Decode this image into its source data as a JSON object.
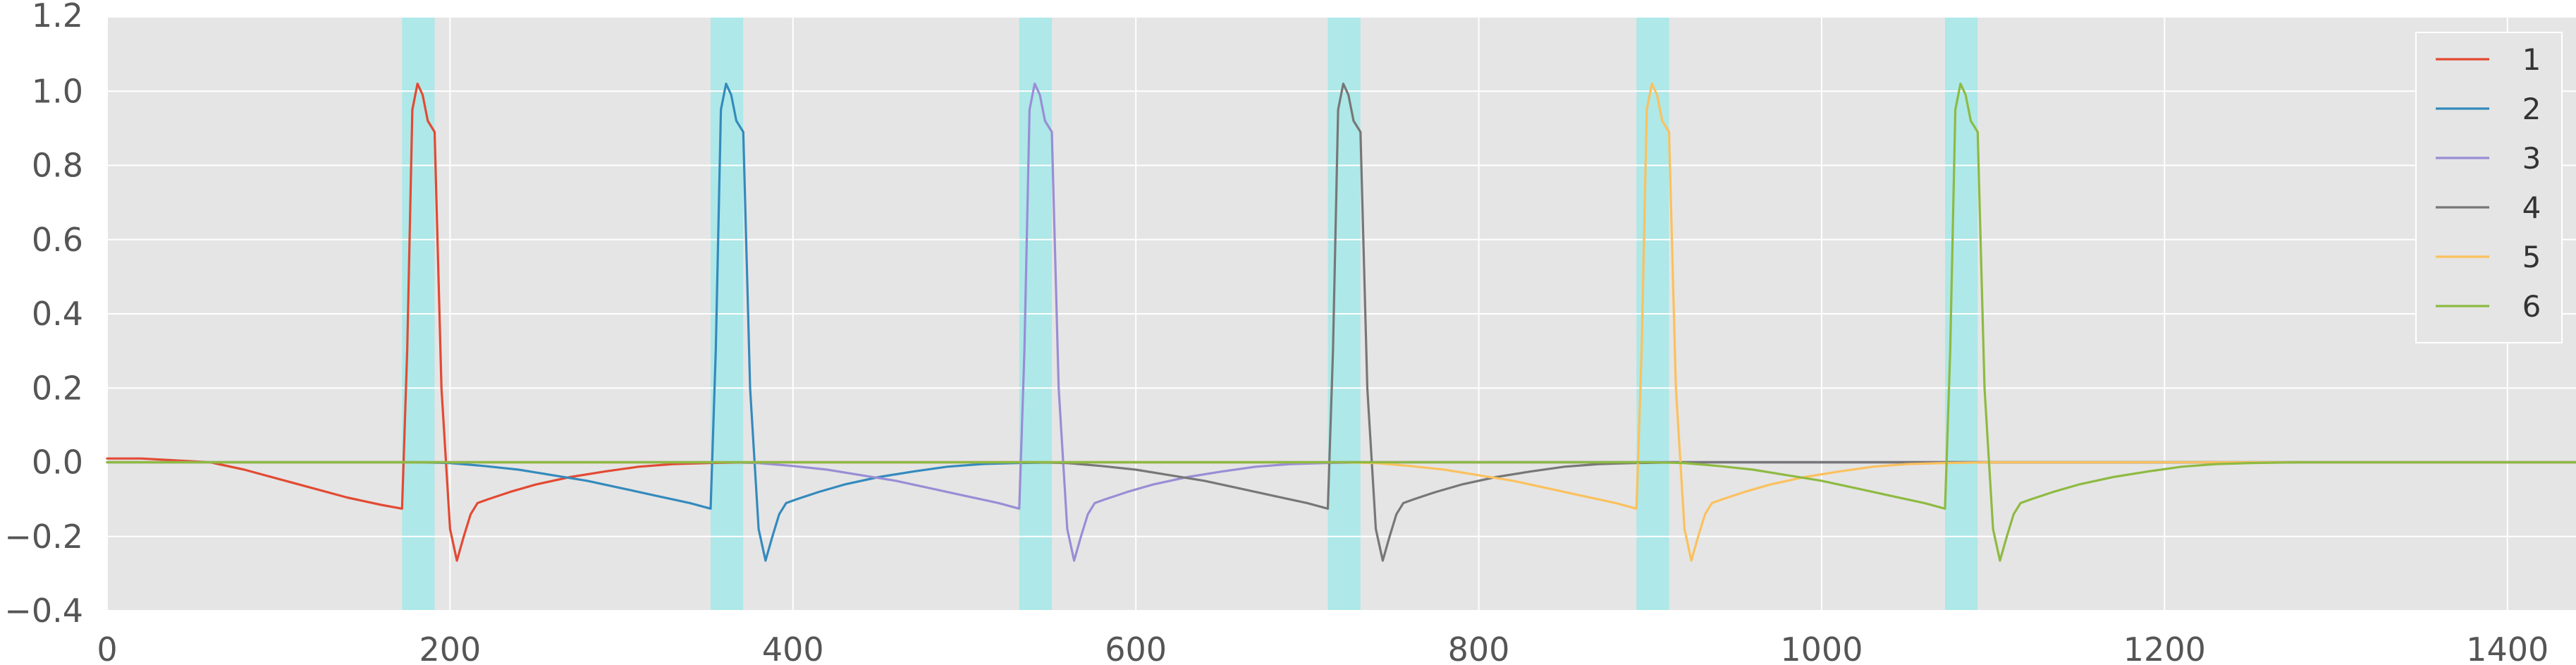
{
  "chart_data": {
    "type": "line",
    "title": "",
    "xlabel": "",
    "ylabel": "",
    "xlim": [
      0,
      1440
    ],
    "ylim": [
      -0.4,
      1.2
    ],
    "x_ticks": [
      0,
      200,
      400,
      600,
      800,
      1000,
      1200,
      1400
    ],
    "y_ticks": [
      -0.4,
      -0.2,
      0.0,
      0.2,
      0.4,
      0.6,
      0.8,
      1.0,
      1.2
    ],
    "x_tick_labels": [
      "0",
      "200",
      "400",
      "600",
      "800",
      "1000",
      "1200",
      "1400"
    ],
    "y_tick_labels": [
      "−0.4",
      "−0.2",
      "0.0",
      "0.2",
      "0.4",
      "0.6",
      "0.8",
      "1.0",
      "1.2"
    ],
    "grid": true,
    "background_color": "#e5e5e5",
    "legend_position": "top-right",
    "highlight_color": "#aee8e8",
    "highlight_spans": [
      [
        172,
        191
      ],
      [
        352,
        371
      ],
      [
        532,
        551
      ],
      [
        712,
        731
      ],
      [
        892,
        911
      ],
      [
        1072,
        1091
      ]
    ],
    "series": [
      {
        "name": "1",
        "color": "#e24a33",
        "x": [
          0,
          20,
          40,
          60,
          80,
          100,
          120,
          140,
          160,
          172,
          175,
          178,
          181,
          184,
          187,
          191,
          195,
          200,
          204,
          208,
          212,
          216,
          222,
          235,
          250,
          270,
          290,
          310,
          330,
          350,
          380,
          1440
        ],
        "y": [
          0.01,
          0.01,
          0.005,
          0.0,
          -0.02,
          -0.045,
          -0.07,
          -0.095,
          -0.115,
          -0.125,
          0.3,
          0.95,
          1.02,
          0.99,
          0.92,
          0.89,
          0.2,
          -0.18,
          -0.265,
          -0.2,
          -0.14,
          -0.11,
          -0.1,
          -0.08,
          -0.06,
          -0.04,
          -0.025,
          -0.012,
          -0.005,
          -0.002,
          0.0,
          0.0
        ]
      },
      {
        "name": "2",
        "color": "#348abd",
        "x": [
          0,
          180,
          200,
          220,
          240,
          260,
          280,
          300,
          320,
          340,
          352,
          355,
          358,
          361,
          364,
          367,
          371,
          375,
          380,
          384,
          388,
          392,
          396,
          402,
          415,
          430,
          450,
          470,
          490,
          510,
          530,
          560,
          1440
        ],
        "y": [
          0.0,
          0.0,
          -0.002,
          -0.01,
          -0.02,
          -0.035,
          -0.05,
          -0.07,
          -0.09,
          -0.11,
          -0.125,
          0.3,
          0.95,
          1.02,
          0.99,
          0.92,
          0.89,
          0.2,
          -0.18,
          -0.265,
          -0.2,
          -0.14,
          -0.11,
          -0.1,
          -0.08,
          -0.06,
          -0.04,
          -0.025,
          -0.012,
          -0.005,
          -0.002,
          0.0,
          0.0
        ]
      },
      {
        "name": "3",
        "color": "#988ed5",
        "x": [
          0,
          360,
          380,
          400,
          420,
          440,
          460,
          480,
          500,
          520,
          532,
          535,
          538,
          541,
          544,
          547,
          551,
          555,
          560,
          564,
          568,
          572,
          576,
          582,
          595,
          610,
          630,
          650,
          670,
          690,
          710,
          740,
          1440
        ],
        "y": [
          0.0,
          0.0,
          -0.002,
          -0.01,
          -0.02,
          -0.035,
          -0.05,
          -0.07,
          -0.09,
          -0.11,
          -0.125,
          0.3,
          0.95,
          1.02,
          0.99,
          0.92,
          0.89,
          0.2,
          -0.18,
          -0.265,
          -0.2,
          -0.14,
          -0.11,
          -0.1,
          -0.08,
          -0.06,
          -0.04,
          -0.025,
          -0.012,
          -0.005,
          -0.002,
          0.0,
          0.0
        ]
      },
      {
        "name": "4",
        "color": "#777777",
        "x": [
          0,
          540,
          560,
          580,
          600,
          620,
          640,
          660,
          680,
          700,
          712,
          715,
          718,
          721,
          724,
          727,
          731,
          735,
          740,
          744,
          748,
          752,
          756,
          762,
          775,
          790,
          810,
          830,
          850,
          870,
          890,
          920,
          1440
        ],
        "y": [
          0.0,
          0.0,
          -0.002,
          -0.01,
          -0.02,
          -0.035,
          -0.05,
          -0.07,
          -0.09,
          -0.11,
          -0.125,
          0.3,
          0.95,
          1.02,
          0.99,
          0.92,
          0.89,
          0.2,
          -0.18,
          -0.265,
          -0.2,
          -0.14,
          -0.11,
          -0.1,
          -0.08,
          -0.06,
          -0.04,
          -0.025,
          -0.012,
          -0.005,
          -0.002,
          0.0,
          0.0
        ]
      },
      {
        "name": "5",
        "color": "#fbc15e",
        "x": [
          0,
          720,
          740,
          760,
          780,
          800,
          820,
          840,
          860,
          880,
          892,
          895,
          898,
          901,
          904,
          907,
          911,
          915,
          920,
          924,
          928,
          932,
          936,
          942,
          955,
          970,
          990,
          1010,
          1030,
          1050,
          1070,
          1100,
          1440
        ],
        "y": [
          0.0,
          0.0,
          -0.002,
          -0.01,
          -0.02,
          -0.035,
          -0.05,
          -0.07,
          -0.09,
          -0.11,
          -0.125,
          0.3,
          0.95,
          1.02,
          0.99,
          0.92,
          0.89,
          0.2,
          -0.18,
          -0.265,
          -0.2,
          -0.14,
          -0.11,
          -0.1,
          -0.08,
          -0.06,
          -0.04,
          -0.025,
          -0.012,
          -0.005,
          -0.002,
          0.0,
          0.0
        ]
      },
      {
        "name": "6",
        "color": "#8eba42",
        "x": [
          0,
          900,
          920,
          940,
          960,
          980,
          1000,
          1020,
          1040,
          1060,
          1072,
          1075,
          1078,
          1081,
          1084,
          1087,
          1091,
          1095,
          1100,
          1104,
          1108,
          1112,
          1116,
          1122,
          1135,
          1150,
          1170,
          1190,
          1210,
          1230,
          1250,
          1280,
          1440
        ],
        "y": [
          0.0,
          0.0,
          -0.002,
          -0.01,
          -0.02,
          -0.035,
          -0.05,
          -0.07,
          -0.09,
          -0.11,
          -0.125,
          0.3,
          0.95,
          1.02,
          0.99,
          0.92,
          0.89,
          0.2,
          -0.18,
          -0.265,
          -0.2,
          -0.14,
          -0.11,
          -0.1,
          -0.08,
          -0.06,
          -0.04,
          -0.025,
          -0.012,
          -0.005,
          -0.002,
          0.0,
          0.0
        ]
      }
    ]
  }
}
